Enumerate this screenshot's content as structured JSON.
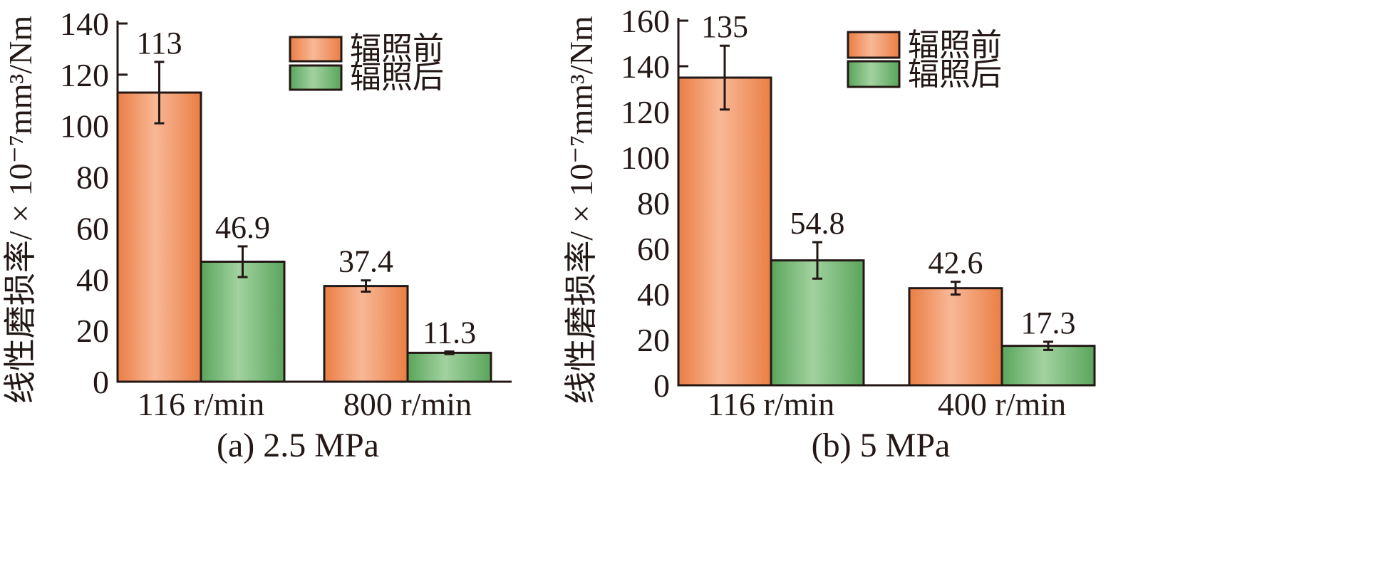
{
  "colors": {
    "before_dark": "#ea7e45",
    "before_light": "#f7b592",
    "after_dark": "#5aa55c",
    "after_light": "#9fd19c",
    "ink": "#231815"
  },
  "chart_data": [
    {
      "type": "bar",
      "panel_caption": "(a) 2.5 MPa",
      "ylabel": "线性磨损率/ × 10⁻⁷mm³/Nm",
      "ylim": [
        0,
        140
      ],
      "yticks": [
        0,
        20,
        40,
        60,
        80,
        100,
        120,
        140
      ],
      "categories": [
        "116 r/min",
        "800 r/min"
      ],
      "legend_position": "top-right",
      "series": [
        {
          "name": "辐照前",
          "values": [
            113,
            37.4
          ],
          "errors": [
            12,
            2.2
          ],
          "value_labels": [
            "113",
            "37.4"
          ]
        },
        {
          "name": "辐照后",
          "values": [
            46.9,
            11.3
          ],
          "errors": [
            6,
            0.5
          ],
          "value_labels": [
            "46.9",
            "11.3"
          ]
        }
      ]
    },
    {
      "type": "bar",
      "panel_caption": "(b) 5 MPa",
      "ylabel": "线性磨损率/ × 10⁻⁷mm³/Nm",
      "ylim": [
        0,
        160
      ],
      "yticks": [
        0,
        20,
        40,
        60,
        80,
        100,
        120,
        140,
        160
      ],
      "categories": [
        "116 r/min",
        "400 r/min"
      ],
      "legend_position": "top-right",
      "series": [
        {
          "name": "辐照前",
          "values": [
            135,
            42.6
          ],
          "errors": [
            14,
            2.8
          ],
          "value_labels": [
            "135",
            "42.6"
          ]
        },
        {
          "name": "辐照后",
          "values": [
            54.8,
            17.3
          ],
          "errors": [
            8,
            1.8
          ],
          "value_labels": [
            "54.8",
            "17.3"
          ]
        }
      ]
    }
  ]
}
